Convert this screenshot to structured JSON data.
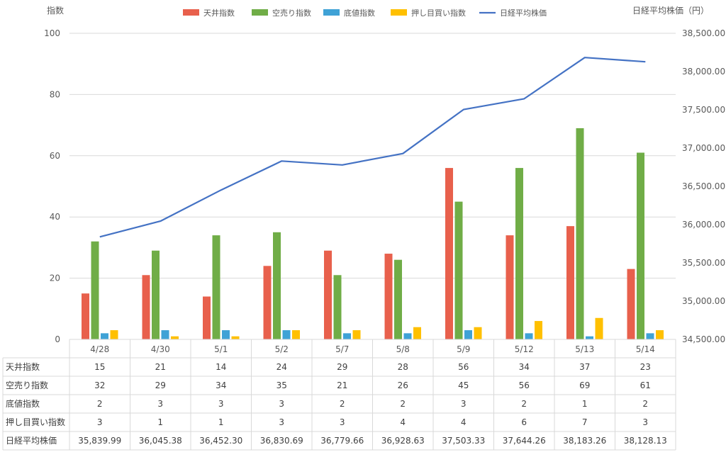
{
  "chart_data": {
    "type": "bar",
    "title": "",
    "y_axis_left_label": "指数",
    "y_axis_right_label": "日経平均株価（円）",
    "ylim_left": [
      0,
      100
    ],
    "yticks_left": [
      "0",
      "20",
      "40",
      "60",
      "80",
      "100"
    ],
    "ylim_right": [
      34500,
      38500
    ],
    "yticks_right": [
      "34,500.00",
      "35,000.00",
      "35,500.00",
      "36,000.00",
      "36,500.00",
      "37,000.00",
      "37,500.00",
      "38,000.00",
      "38,500.00"
    ],
    "grid": true,
    "legend_position": "top",
    "categories": [
      "4/28",
      "4/30",
      "5/1",
      "5/2",
      "5/7",
      "5/8",
      "5/9",
      "5/12",
      "5/13",
      "5/14"
    ],
    "series": [
      {
        "name": "天井指数",
        "type": "bar",
        "axis": "left",
        "color": "#E8604C",
        "values": [
          15,
          21,
          14,
          24,
          29,
          28,
          56,
          34,
          37,
          23
        ]
      },
      {
        "name": "空売り指数",
        "type": "bar",
        "axis": "left",
        "color": "#70AD47",
        "values": [
          32,
          29,
          34,
          35,
          21,
          26,
          45,
          56,
          69,
          61
        ]
      },
      {
        "name": "底値指数",
        "type": "bar",
        "axis": "left",
        "color": "#3FA2D6",
        "values": [
          2,
          3,
          3,
          3,
          2,
          2,
          3,
          2,
          1,
          2
        ]
      },
      {
        "name": "押し目買い指数",
        "type": "bar",
        "axis": "left",
        "color": "#FFC000",
        "values": [
          3,
          1,
          1,
          3,
          3,
          4,
          4,
          6,
          7,
          3
        ]
      },
      {
        "name": "日経平均株価",
        "type": "line",
        "axis": "right",
        "color": "#4472C4",
        "values": [
          35839.99,
          36045.38,
          36452.3,
          36830.69,
          36779.66,
          36928.63,
          37503.33,
          37644.26,
          38183.26,
          38128.13
        ]
      }
    ],
    "table": {
      "row_labels": [
        "天井指数",
        "空売り指数",
        "底値指数",
        "押し目買い指数",
        "日経平均株価"
      ],
      "rows": [
        [
          "15",
          "21",
          "14",
          "24",
          "29",
          "28",
          "56",
          "34",
          "37",
          "23"
        ],
        [
          "32",
          "29",
          "34",
          "35",
          "21",
          "26",
          "45",
          "56",
          "69",
          "61"
        ],
        [
          "2",
          "3",
          "3",
          "3",
          "2",
          "2",
          "3",
          "2",
          "1",
          "2"
        ],
        [
          "3",
          "1",
          "1",
          "3",
          "3",
          "4",
          "4",
          "6",
          "7",
          "3"
        ],
        [
          "35,839.99",
          "36,045.38",
          "36,452.30",
          "36,830.69",
          "36,779.66",
          "36,928.63",
          "37,503.33",
          "37,644.26",
          "38,183.26",
          "38,128.13"
        ]
      ]
    }
  }
}
